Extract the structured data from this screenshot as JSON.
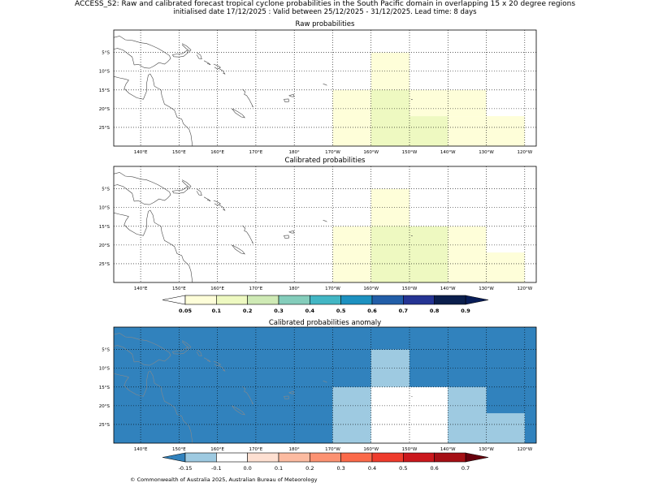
{
  "title": {
    "line1": "ACCESS_S2: Raw and calibrated forecast tropical cyclone probabilities in the South Pacific domain in overlapping 15 x 20 degree regions",
    "line2": "initialised date 17/12/2025 :  Valid between 25/12/2025 - 31/12/2025. Lead time: 8 days"
  },
  "maps": [
    {
      "id": "raw",
      "title": "Raw probabilities",
      "background": "#ffffff",
      "coast_color": "#444444",
      "cells": [
        {
          "lon": [
            -170,
            -160
          ],
          "lat": [
            -30,
            -15
          ],
          "color": "#fefed9"
        },
        {
          "lon": [
            -160,
            -150
          ],
          "lat": [
            -30,
            -5
          ],
          "color": "#fefed9"
        },
        {
          "lon": [
            -160,
            -150
          ],
          "lat": [
            -30,
            -15
          ],
          "color": "#eef9c1"
        },
        {
          "lon": [
            -150,
            -130
          ],
          "lat": [
            -22,
            -15
          ],
          "color": "#fefed9"
        },
        {
          "lon": [
            -150,
            -140
          ],
          "lat": [
            -30,
            -22
          ],
          "color": "#eef9c1"
        },
        {
          "lon": [
            -140,
            -130
          ],
          "lat": [
            -30,
            -22
          ],
          "color": "#fefed9"
        },
        {
          "lon": [
            -130,
            -120
          ],
          "lat": [
            -30,
            -22
          ],
          "color": "#fefed9"
        }
      ]
    },
    {
      "id": "calibrated",
      "title": "Calibrated probabilities",
      "background": "#ffffff",
      "coast_color": "#444444",
      "cells": [
        {
          "lon": [
            -170,
            -160
          ],
          "lat": [
            -30,
            -15
          ],
          "color": "#fefed9"
        },
        {
          "lon": [
            -160,
            -150
          ],
          "lat": [
            -30,
            -5
          ],
          "color": "#fefed9"
        },
        {
          "lon": [
            -160,
            -140
          ],
          "lat": [
            -30,
            -15
          ],
          "color": "#eef9c1"
        },
        {
          "lon": [
            -140,
            -130
          ],
          "lat": [
            -30,
            -15
          ],
          "color": "#fefed9"
        },
        {
          "lon": [
            -130,
            -120
          ],
          "lat": [
            -30,
            -22
          ],
          "color": "#fefed9"
        }
      ]
    },
    {
      "id": "anomaly",
      "title": "Calibrated probabilities anomaly",
      "background": "#3182bd",
      "coast_color": "#8a8a8a",
      "cells": [
        {
          "lon": [
            -160,
            -150
          ],
          "lat": [
            -30,
            -5
          ],
          "color": "#9ecae1"
        },
        {
          "lon": [
            -170,
            -160
          ],
          "lat": [
            -30,
            -15
          ],
          "color": "#9ecae1"
        },
        {
          "lon": [
            -160,
            -140
          ],
          "lat": [
            -30,
            -15
          ],
          "color": "#ffffff"
        },
        {
          "lon": [
            -140,
            -130
          ],
          "lat": [
            -30,
            -15
          ],
          "color": "#9ecae1"
        },
        {
          "lon": [
            -130,
            -120
          ],
          "lat": [
            -30,
            -22
          ],
          "color": "#9ecae1"
        }
      ]
    }
  ],
  "axes": {
    "lon_range": [
      133,
      243
    ],
    "lat_range": [
      -30,
      1
    ],
    "lon_ticks": [
      {
        "value": 140,
        "label": "140°E"
      },
      {
        "value": 150,
        "label": "150°E"
      },
      {
        "value": 160,
        "label": "160°E"
      },
      {
        "value": 170,
        "label": "170°E"
      },
      {
        "value": 180,
        "label": "180°"
      },
      {
        "value": 190,
        "label": "170°W"
      },
      {
        "value": 200,
        "label": "160°W"
      },
      {
        "value": 210,
        "label": "150°W"
      },
      {
        "value": 220,
        "label": "140°W"
      },
      {
        "value": 230,
        "label": "130°W"
      },
      {
        "value": 240,
        "label": "120°W"
      }
    ],
    "lat_ticks": [
      {
        "value": -5,
        "label": "5°S"
      },
      {
        "value": -10,
        "label": "10°S"
      },
      {
        "value": -15,
        "label": "15°S"
      },
      {
        "value": -20,
        "label": "20°S"
      },
      {
        "value": -25,
        "label": "25°S"
      }
    ]
  },
  "colorbars": [
    {
      "id": "probability",
      "under_color": "#ffffff",
      "over_color": "#081d58",
      "colors": [
        "#fefed9",
        "#eef9c1",
        "#cfeab5",
        "#84cdbb",
        "#42b6c4",
        "#1d91c0",
        "#225ea8",
        "#253494",
        "#0b1f4d"
      ],
      "labels": [
        "0.05",
        "0.1",
        "0.2",
        "0.3",
        "0.4",
        "0.5",
        "0.6",
        "0.7",
        "0.8",
        "0.9"
      ],
      "bold_labels": true
    },
    {
      "id": "anomaly",
      "under_color": "#3182bd",
      "over_color": "#67000d",
      "colors": [
        "#9ecae1",
        "#ffffff",
        "#fee0d2",
        "#fcbba1",
        "#fc9272",
        "#fb6a4a",
        "#ef3b2c",
        "#cb181d",
        "#a50f15"
      ],
      "labels": [
        "-0.15",
        "-0.1",
        "0.0",
        "0.1",
        "0.2",
        "0.3",
        "0.4",
        "0.5",
        "0.6",
        "0.7"
      ],
      "bold_labels": false
    }
  ],
  "copyright": "© Commonwealth of Australia 2025, Australian Bureau of Meteorology"
}
